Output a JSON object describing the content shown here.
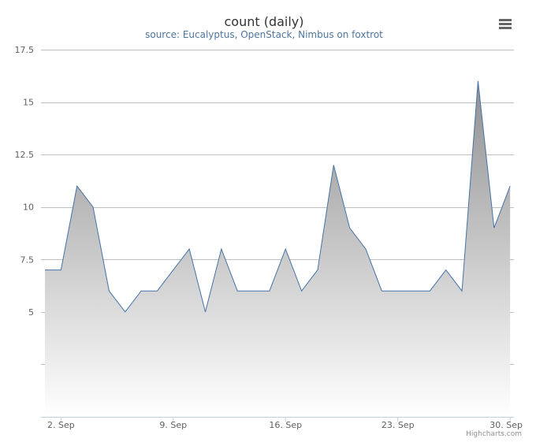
{
  "chart_data": {
    "type": "area",
    "title": "count (daily)",
    "subtitle": "source: Eucalyptus, OpenStack, Nimbus on foxtrot",
    "x": [
      "2013-09-01",
      "2013-09-02",
      "2013-09-03",
      "2013-09-04",
      "2013-09-05",
      "2013-09-06",
      "2013-09-07",
      "2013-09-08",
      "2013-09-09",
      "2013-09-10",
      "2013-09-11",
      "2013-09-12",
      "2013-09-13",
      "2013-09-14",
      "2013-09-15",
      "2013-09-16",
      "2013-09-17",
      "2013-09-18",
      "2013-09-19",
      "2013-09-20",
      "2013-09-21",
      "2013-09-22",
      "2013-09-23",
      "2013-09-24",
      "2013-09-25",
      "2013-09-26",
      "2013-09-27",
      "2013-09-28",
      "2013-09-29",
      "2013-09-30"
    ],
    "series": [
      {
        "values": [
          7,
          7,
          11,
          10,
          6,
          5,
          6,
          6,
          7,
          8,
          5,
          8,
          6,
          6,
          6,
          8,
          6,
          7,
          12,
          9,
          8,
          6,
          6,
          6,
          6,
          7,
          6,
          16,
          9,
          11
        ]
      }
    ],
    "ylim": [
      0,
      17.5
    ],
    "yticks": [
      "17.5",
      "15",
      "12.5",
      "10",
      "7.5",
      "5"
    ],
    "xticks": [
      "2. Sep",
      "9. Sep",
      "16. Sep",
      "23. Sep",
      "30. Sep"
    ],
    "xtick_days": [
      2,
      9,
      16,
      23,
      30
    ],
    "grid": true,
    "legend": "none",
    "colors": {
      "line": "#4572a7",
      "fill_top": "#909090",
      "fill_bottom": "#ffffff",
      "grid": "#c0c0c0"
    }
  },
  "menu": {
    "icon": "hamburger-menu-icon"
  },
  "credits": "Highcharts.com"
}
